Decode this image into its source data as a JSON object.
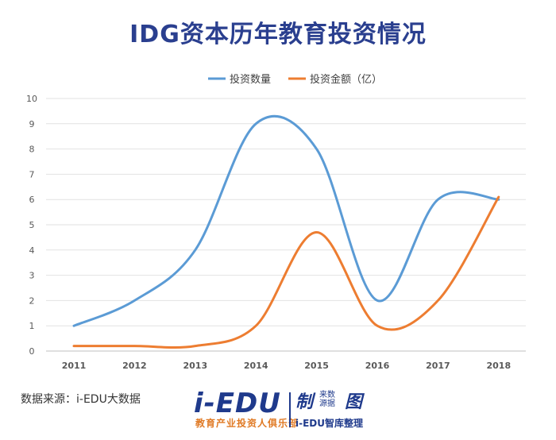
{
  "chart_data": {
    "type": "line",
    "title": "IDG资本历年教育投资情况",
    "x": [
      "2011",
      "2012",
      "2013",
      "2014",
      "2015",
      "2016",
      "2017",
      "2018"
    ],
    "ylim": [
      0,
      10
    ],
    "yticks": [
      0,
      1,
      2,
      3,
      4,
      5,
      6,
      7,
      8,
      9,
      10
    ],
    "grid": true,
    "legend_position": "top",
    "smooth": true,
    "series": [
      {
        "name": "投资数量",
        "color": "#5b9bd5",
        "values": [
          1,
          2,
          4,
          9,
          8,
          2,
          6,
          6
        ]
      },
      {
        "name": "投资金额（亿）",
        "color": "#ed7d31",
        "values": [
          0.2,
          0.2,
          0.2,
          1,
          4.7,
          1,
          2,
          6.1
        ]
      }
    ]
  },
  "source_note": "数据来源：i-EDU大数据",
  "footer": {
    "logo_main": "i-EDU",
    "logo_sub": "教育产业投资人俱乐部",
    "logo_right": "制",
    "logo_right_small_1": "来数",
    "logo_right_small_2": "源据",
    "logo_right_icon": "图",
    "logo_right_sub": "i-EDU智库整理"
  }
}
